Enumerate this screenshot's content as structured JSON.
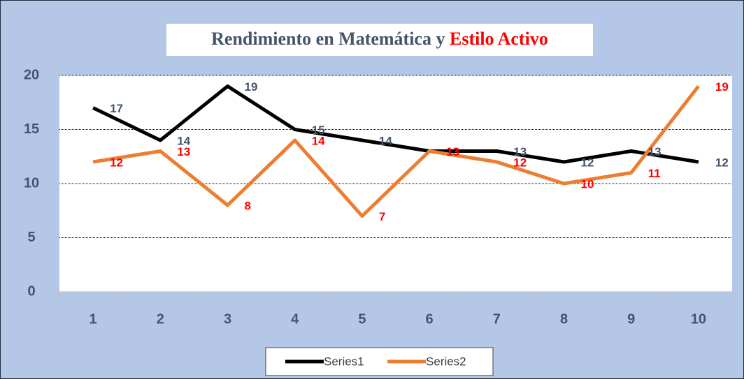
{
  "chart_data": {
    "type": "line",
    "title": "Rendimiento en Matemática y",
    "title_highlight": "Estilo Activo",
    "categories": [
      1,
      2,
      3,
      4,
      5,
      6,
      7,
      8,
      9,
      10
    ],
    "series": [
      {
        "name": "Series1",
        "color": "#000000",
        "label_color": "#44546a",
        "values": [
          17,
          14,
          19,
          15,
          14,
          13,
          13,
          12,
          13,
          12
        ]
      },
      {
        "name": "Series2",
        "color": "#ed7d31",
        "label_color": "#ff0000",
        "values": [
          12,
          13,
          8,
          14,
          7,
          13,
          12,
          10,
          11,
          19
        ]
      }
    ],
    "ylim": [
      0,
      20
    ],
    "yticks": [
      0,
      5,
      10,
      15,
      20
    ],
    "grid": true,
    "legend": "bottom"
  }
}
